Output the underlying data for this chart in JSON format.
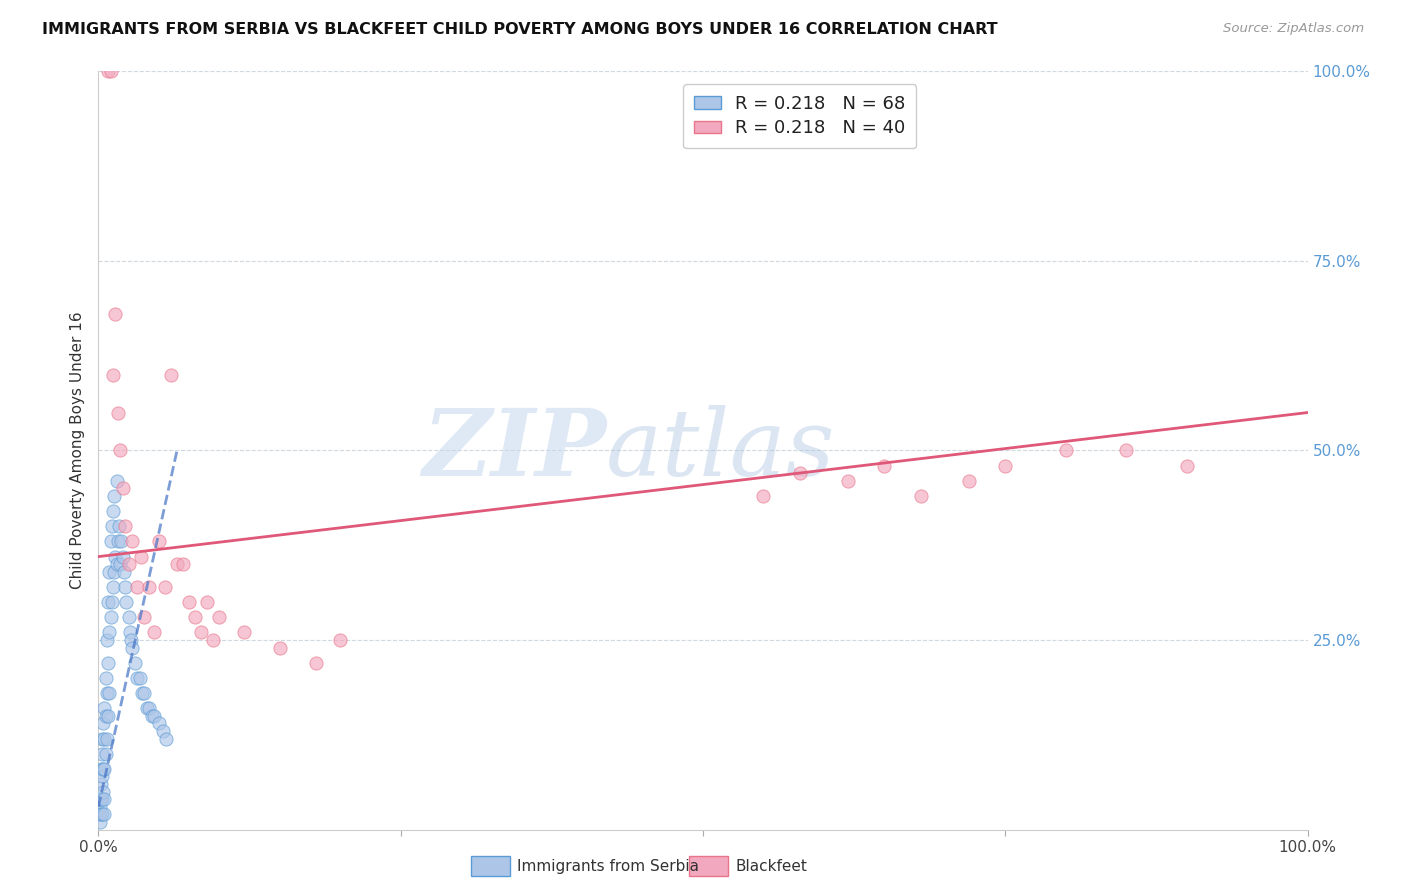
{
  "title": "IMMIGRANTS FROM SERBIA VS BLACKFEET CHILD POVERTY AMONG BOYS UNDER 16 CORRELATION CHART",
  "source": "Source: ZipAtlas.com",
  "ylabel": "Child Poverty Among Boys Under 16",
  "series1_label": "Immigrants from Serbia",
  "series2_label": "Blackfeet",
  "series1_R": 0.218,
  "series1_N": 68,
  "series2_R": 0.218,
  "series2_N": 40,
  "series1_color": "#adc6e8",
  "series2_color": "#f2a8be",
  "series1_edge_color": "#5b9bd5",
  "series2_edge_color": "#e8758a",
  "trend1_color": "#4472c4",
  "trend2_color": "#e05878",
  "watermark_zip": "ZIP",
  "watermark_atlas": "atlas",
  "watermark_color_zip": "#c8ddf0",
  "watermark_color_atlas": "#b0cce8",
  "grid_color": "#d0d8e0",
  "xlim": [
    0,
    1.0
  ],
  "ylim": [
    0,
    1.0
  ],
  "figsize": [
    14.06,
    8.92
  ],
  "dpi": 100,
  "serbia_x": [
    0.0005,
    0.001,
    0.001,
    0.0015,
    0.002,
    0.002,
    0.002,
    0.0025,
    0.003,
    0.003,
    0.003,
    0.003,
    0.003,
    0.004,
    0.004,
    0.004,
    0.005,
    0.005,
    0.005,
    0.005,
    0.005,
    0.006,
    0.006,
    0.006,
    0.007,
    0.007,
    0.007,
    0.008,
    0.008,
    0.008,
    0.009,
    0.009,
    0.009,
    0.01,
    0.01,
    0.011,
    0.011,
    0.012,
    0.012,
    0.013,
    0.013,
    0.014,
    0.015,
    0.015,
    0.016,
    0.017,
    0.018,
    0.019,
    0.02,
    0.021,
    0.022,
    0.023,
    0.025,
    0.026,
    0.027,
    0.028,
    0.03,
    0.032,
    0.034,
    0.036,
    0.038,
    0.04,
    0.042,
    0.044,
    0.046,
    0.05,
    0.053,
    0.056
  ],
  "serbia_y": [
    0.02,
    0.04,
    0.01,
    0.03,
    0.06,
    0.02,
    0.08,
    0.04,
    0.1,
    0.07,
    0.04,
    0.02,
    0.12,
    0.14,
    0.08,
    0.05,
    0.16,
    0.12,
    0.08,
    0.04,
    0.02,
    0.2,
    0.15,
    0.1,
    0.25,
    0.18,
    0.12,
    0.3,
    0.22,
    0.15,
    0.34,
    0.26,
    0.18,
    0.38,
    0.28,
    0.4,
    0.3,
    0.42,
    0.32,
    0.44,
    0.34,
    0.36,
    0.46,
    0.35,
    0.38,
    0.4,
    0.35,
    0.38,
    0.36,
    0.34,
    0.32,
    0.3,
    0.28,
    0.26,
    0.25,
    0.24,
    0.22,
    0.2,
    0.2,
    0.18,
    0.18,
    0.16,
    0.16,
    0.15,
    0.15,
    0.14,
    0.13,
    0.12
  ],
  "blackfeet_x": [
    0.008,
    0.01,
    0.012,
    0.014,
    0.016,
    0.018,
    0.02,
    0.022,
    0.025,
    0.028,
    0.032,
    0.035,
    0.038,
    0.042,
    0.046,
    0.05,
    0.055,
    0.06,
    0.065,
    0.07,
    0.075,
    0.08,
    0.085,
    0.09,
    0.095,
    0.1,
    0.12,
    0.15,
    0.18,
    0.2,
    0.55,
    0.58,
    0.62,
    0.65,
    0.68,
    0.72,
    0.75,
    0.8,
    0.85,
    0.9
  ],
  "blackfeet_y": [
    1.0,
    1.0,
    0.6,
    0.68,
    0.55,
    0.5,
    0.45,
    0.4,
    0.35,
    0.38,
    0.32,
    0.36,
    0.28,
    0.32,
    0.26,
    0.38,
    0.32,
    0.6,
    0.35,
    0.35,
    0.3,
    0.28,
    0.26,
    0.3,
    0.25,
    0.28,
    0.26,
    0.24,
    0.22,
    0.25,
    0.44,
    0.47,
    0.46,
    0.48,
    0.44,
    0.46,
    0.48,
    0.5,
    0.5,
    0.48
  ],
  "serbia_trend_x": [
    0.0,
    0.065
  ],
  "serbia_trend_y": [
    0.03,
    0.5
  ],
  "blackfeet_trend_x": [
    0.0,
    1.0
  ],
  "blackfeet_trend_y": [
    0.36,
    0.55
  ]
}
